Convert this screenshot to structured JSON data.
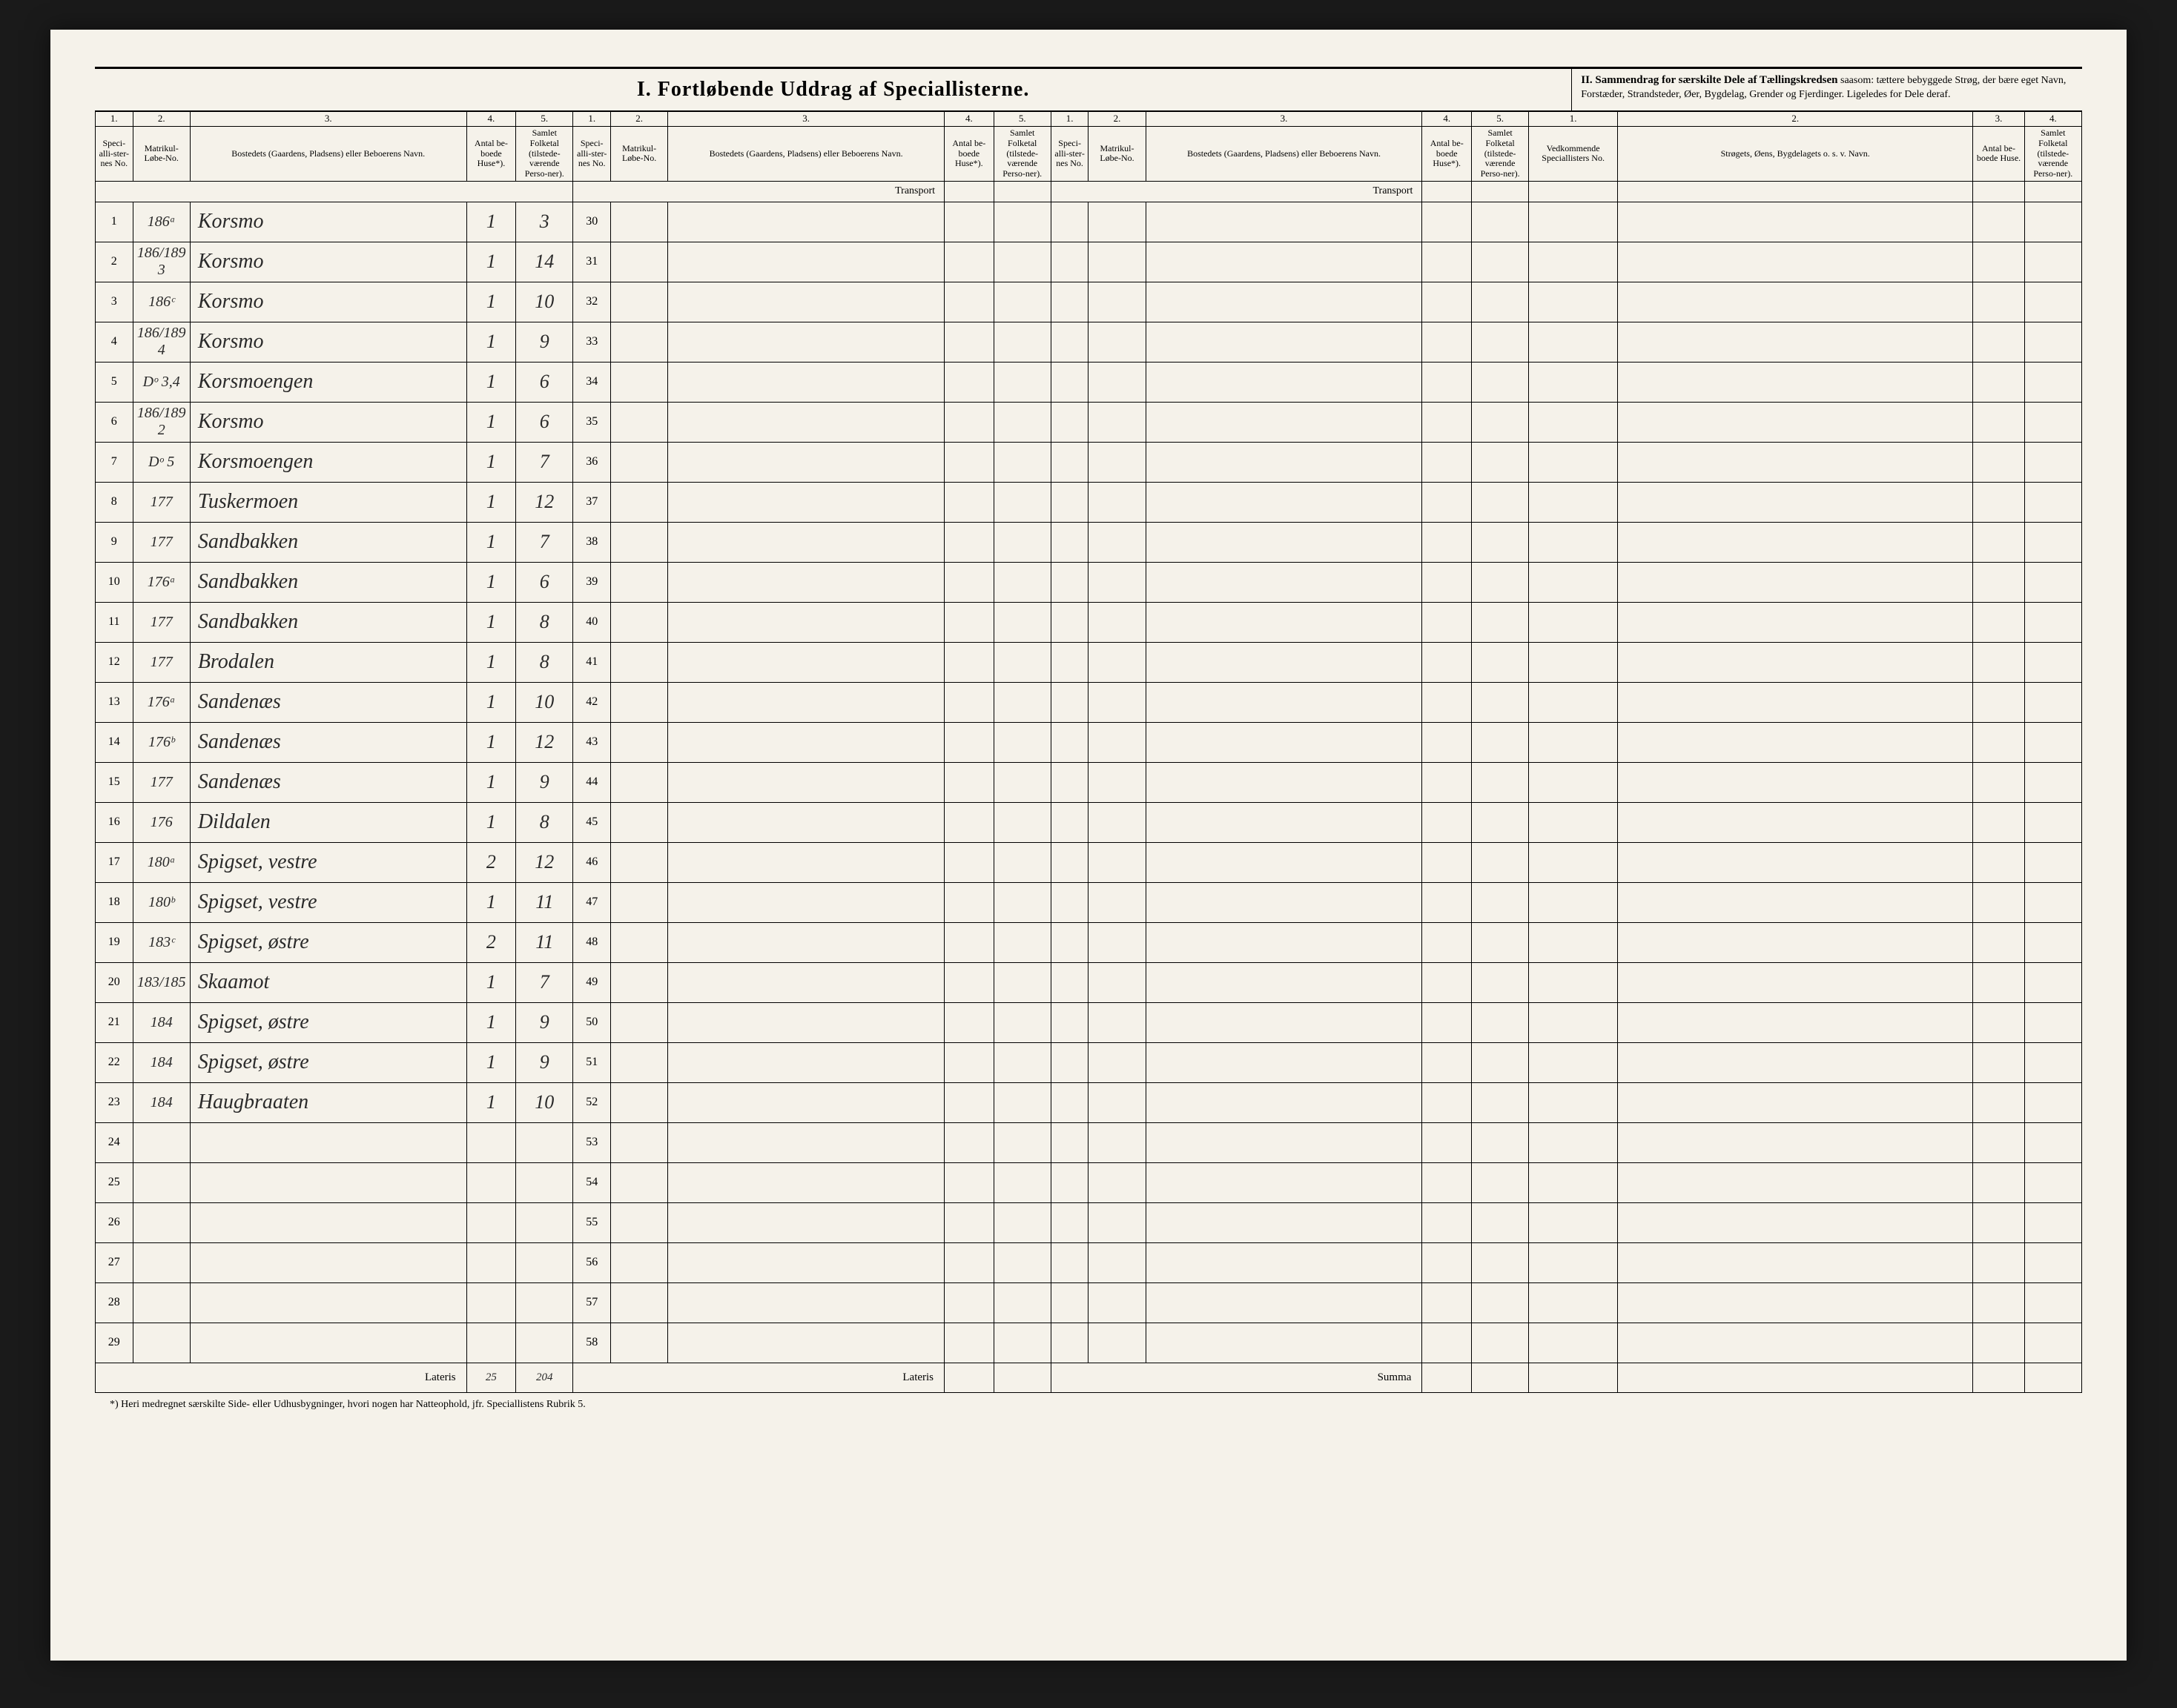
{
  "title_main": "I.  Fortløbende Uddrag af Speciallisterne.",
  "title_right_bold": "II.  Sammendrag for særskilte Dele af Tællingskredsen",
  "title_right_rest": " saasom: tættere bebyggede Strøg, der bære eget Navn, Forstæder, Strandsteder, Øer, Bygdelag, Grender og Fjerdinger. Ligeledes for Dele deraf.",
  "colnums": [
    "1.",
    "2.",
    "3.",
    "4.",
    "5.",
    "1.",
    "2.",
    "3.",
    "4.",
    "5.",
    "1.",
    "2.",
    "3.",
    "4.",
    "5.",
    "1.",
    "2.",
    "3.",
    "4."
  ],
  "headers": {
    "spec": "Speci-alli-ster-nes No.",
    "matr": "Matrikul-Løbe-No.",
    "bost": "Bostedets (Gaardens, Pladsens) eller Beboerens Navn.",
    "huse": "Antal be-boede Huse*).",
    "folk": "Samlet Folketal (tilstede-værende Perso-ner).",
    "vedk": "Vedkommende Speciallisters No.",
    "strog": "Strøgets, Øens, Bygdelagets o. s. v. Navn.",
    "anth": "Antal be-boede Huse.",
    "samf": "Samlet Folketal (tilstede-værende Perso-ner)."
  },
  "transport": "Transport",
  "lateris": "Lateris",
  "summa": "Summa",
  "lateris_huse": "25",
  "lateris_folk": "204",
  "footnote": "*) Heri medregnet særskilte Side- eller Udhusbygninger, hvori nogen har Natteophold, jfr. Speciallistens Rubrik 5.",
  "rows": [
    {
      "n": 1,
      "matr": "186ᵃ",
      "bost": "Korsmo",
      "huse": "1",
      "folk": "3",
      "n2": 30
    },
    {
      "n": 2,
      "matr": "186/189 3",
      "bost": "Korsmo",
      "huse": "1",
      "folk": "14",
      "n2": 31
    },
    {
      "n": 3,
      "matr": "186ᶜ",
      "bost": "Korsmo",
      "huse": "1",
      "folk": "10",
      "n2": 32
    },
    {
      "n": 4,
      "matr": "186/189 4",
      "bost": "Korsmo",
      "huse": "1",
      "folk": "9",
      "n2": 33
    },
    {
      "n": 5,
      "matr": "Dᵒ 3,4",
      "bost": "Korsmoengen",
      "huse": "1",
      "folk": "6",
      "n2": 34
    },
    {
      "n": 6,
      "matr": "186/189 2",
      "bost": "Korsmo",
      "huse": "1",
      "folk": "6",
      "n2": 35
    },
    {
      "n": 7,
      "matr": "Dᵒ 5",
      "bost": "Korsmoengen",
      "huse": "1",
      "folk": "7",
      "n2": 36
    },
    {
      "n": 8,
      "matr": "177",
      "bost": "Tuskermoen",
      "huse": "1",
      "folk": "12",
      "n2": 37
    },
    {
      "n": 9,
      "matr": "177",
      "bost": "Sandbakken",
      "huse": "1",
      "folk": "7",
      "n2": 38
    },
    {
      "n": 10,
      "matr": "176ᵃ",
      "bost": "Sandbakken",
      "huse": "1",
      "folk": "6",
      "n2": 39
    },
    {
      "n": 11,
      "matr": "177",
      "bost": "Sandbakken",
      "huse": "1",
      "folk": "8",
      "n2": 40
    },
    {
      "n": 12,
      "matr": "177",
      "bost": "Brodalen",
      "huse": "1",
      "folk": "8",
      "n2": 41
    },
    {
      "n": 13,
      "matr": "176ᵃ",
      "bost": "Sandenæs",
      "huse": "1",
      "folk": "10",
      "n2": 42
    },
    {
      "n": 14,
      "matr": "176ᵇ",
      "bost": "Sandenæs",
      "huse": "1",
      "folk": "12",
      "n2": 43
    },
    {
      "n": 15,
      "matr": "177",
      "bost": "Sandenæs",
      "huse": "1",
      "folk": "9",
      "n2": 44
    },
    {
      "n": 16,
      "matr": "176",
      "bost": "Dildalen",
      "huse": "1",
      "folk": "8",
      "n2": 45
    },
    {
      "n": 17,
      "matr": "180ᵃ",
      "bost": "Spigset, vestre",
      "huse": "2",
      "folk": "12",
      "n2": 46
    },
    {
      "n": 18,
      "matr": "180ᵇ",
      "bost": "Spigset, vestre",
      "huse": "1",
      "folk": "11",
      "n2": 47
    },
    {
      "n": 19,
      "matr": "183ᶜ",
      "bost": "Spigset, østre",
      "huse": "2",
      "folk": "11",
      "n2": 48
    },
    {
      "n": 20,
      "matr": "183/185",
      "bost": "Skaamot",
      "huse": "1",
      "folk": "7",
      "n2": 49
    },
    {
      "n": 21,
      "matr": "184",
      "bost": "Spigset, østre",
      "huse": "1",
      "folk": "9",
      "n2": 50
    },
    {
      "n": 22,
      "matr": "184",
      "bost": "Spigset, østre",
      "huse": "1",
      "folk": "9",
      "n2": 51
    },
    {
      "n": 23,
      "matr": "184",
      "bost": "Haugbraaten",
      "huse": "1",
      "folk": "10",
      "n2": 52
    },
    {
      "n": 24,
      "matr": "",
      "bost": "",
      "huse": "",
      "folk": "",
      "n2": 53
    },
    {
      "n": 25,
      "matr": "",
      "bost": "",
      "huse": "",
      "folk": "",
      "n2": 54
    },
    {
      "n": 26,
      "matr": "",
      "bost": "",
      "huse": "",
      "folk": "",
      "n2": 55
    },
    {
      "n": 27,
      "matr": "",
      "bost": "",
      "huse": "",
      "folk": "",
      "n2": 56
    },
    {
      "n": 28,
      "matr": "",
      "bost": "",
      "huse": "",
      "folk": "",
      "n2": 57
    },
    {
      "n": 29,
      "matr": "",
      "bost": "",
      "huse": "",
      "folk": "",
      "n2": 58
    }
  ]
}
